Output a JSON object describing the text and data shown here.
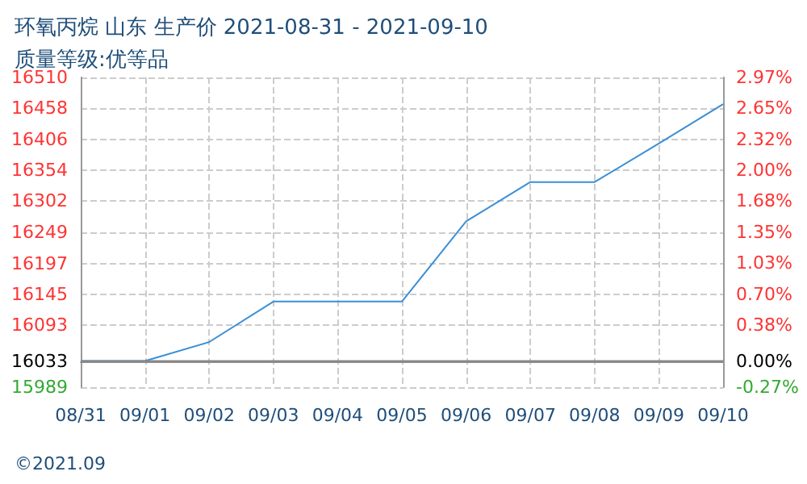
{
  "chart_data": {
    "type": "line",
    "title": "环氧丙烷 山东 生产价 2021-08-31 - 2021-09-10",
    "subtitle": "质量等级:优等品",
    "categories": [
      "08/31",
      "09/01",
      "09/02",
      "09/03",
      "09/04",
      "09/05",
      "09/06",
      "09/07",
      "09/08",
      "09/09",
      "09/10"
    ],
    "series": [
      {
        "color": "#3a8fd6",
        "values": [
          16033,
          16033,
          16065,
          16133,
          16133,
          16133,
          16268,
          16334,
          16334,
          16399,
          16465
        ]
      }
    ],
    "ylim": [
      15989,
      16510
    ],
    "yticks": [
      15989,
      16033,
      16093,
      16145,
      16197,
      16249,
      16302,
      16354,
      16406,
      16458,
      16510
    ],
    "y2lim": [
      -0.27,
      2.97
    ],
    "y2ticks": [
      {
        "value": -0.27,
        "label": "-0.27%"
      },
      {
        "value": 0,
        "label": "0.00%"
      },
      {
        "value": 0.38,
        "label": "0.38%"
      },
      {
        "value": 0.7,
        "label": "0.70%"
      },
      {
        "value": 1.03,
        "label": "1.03%"
      },
      {
        "value": 1.35,
        "label": "1.35%"
      },
      {
        "value": 1.68,
        "label": "1.68%"
      },
      {
        "value": 2,
        "label": "2.00%"
      },
      {
        "value": 2.32,
        "label": "2.32%"
      },
      {
        "value": 2.65,
        "label": "2.65%"
      },
      {
        "value": 2.97,
        "label": "2.97%"
      }
    ],
    "ref_lines": [
      {
        "axis": "y",
        "value": 16033,
        "color": "#888888"
      }
    ],
    "annotations": [
      "©2021.09"
    ],
    "grid": true,
    "marker": "none",
    "line_style": "solid"
  }
}
